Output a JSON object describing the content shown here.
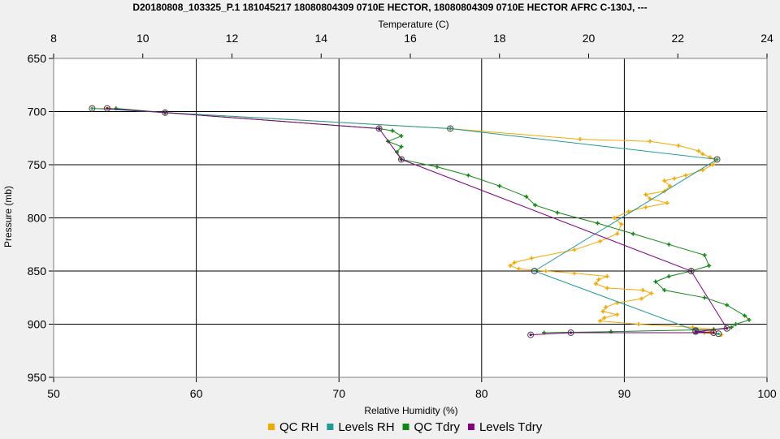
{
  "chart_data": {
    "type": "line",
    "title": "D20180808_103325_P.1 181045217 18080804309 0710E HECTOR, 18080804309 0710E HECTOR AFRC C-130J, ---",
    "x_top_label": "Temperature (C)",
    "x_bottom_label": "Relative Humidity (%)",
    "ylabel": "Pressure (mb)",
    "x_top_range": [
      8,
      24
    ],
    "x_top_ticks": [
      "8",
      "10",
      "12",
      "14",
      "16",
      "18",
      "20",
      "22",
      "24"
    ],
    "x_bottom_range": [
      50,
      100
    ],
    "x_bottom_ticks": [
      "50",
      "60",
      "70",
      "80",
      "90",
      "100"
    ],
    "y_range": [
      650,
      950
    ],
    "y_inverted": true,
    "y_ticks": [
      "650",
      "700",
      "750",
      "800",
      "850",
      "900",
      "950"
    ],
    "grid": true,
    "legend_position": "bottom",
    "series": [
      {
        "name": "QC RH",
        "axis": "bottom",
        "color": "#f5a800",
        "marker": "plus",
        "points": [
          [
            52.7,
            697
          ],
          [
            53.9,
            697
          ],
          [
            57.8,
            701
          ],
          [
            77.8,
            716
          ],
          [
            86.9,
            726
          ],
          [
            91.8,
            728
          ],
          [
            93.8,
            732
          ],
          [
            95.2,
            737
          ],
          [
            95.5,
            740
          ],
          [
            96.0,
            743
          ],
          [
            96.5,
            745
          ],
          [
            96.2,
            750
          ],
          [
            95.5,
            755
          ],
          [
            94.3,
            760
          ],
          [
            93.5,
            763
          ],
          [
            92.8,
            765
          ],
          [
            93.2,
            770
          ],
          [
            92.8,
            775
          ],
          [
            91.5,
            778
          ],
          [
            91.8,
            782
          ],
          [
            93.0,
            786
          ],
          [
            91.5,
            790
          ],
          [
            90.3,
            794
          ],
          [
            89.3,
            800
          ],
          [
            89.8,
            806
          ],
          [
            89.5,
            815
          ],
          [
            88.3,
            822
          ],
          [
            86.5,
            830
          ],
          [
            83.5,
            838
          ],
          [
            82.3,
            842
          ],
          [
            82.0,
            845
          ],
          [
            82.6,
            848
          ],
          [
            84.5,
            850
          ],
          [
            86.5,
            852
          ],
          [
            88.8,
            855
          ],
          [
            88.2,
            858
          ],
          [
            88.0,
            862
          ],
          [
            88.8,
            866
          ],
          [
            91.3,
            868
          ],
          [
            91.9,
            871
          ],
          [
            91.2,
            876
          ],
          [
            89.5,
            880
          ],
          [
            88.7,
            884
          ],
          [
            88.5,
            888
          ],
          [
            89.5,
            891
          ],
          [
            88.6,
            894
          ],
          [
            88.3,
            897
          ],
          [
            91.0,
            900
          ],
          [
            94.8,
            903
          ],
          [
            96.3,
            905
          ],
          [
            96.0,
            907
          ],
          [
            95.6,
            908
          ],
          [
            96.8,
            910
          ]
        ]
      },
      {
        "name": "Levels RH",
        "axis": "bottom",
        "color": "#1e9a9a",
        "marker": "circle",
        "points": [
          [
            52.7,
            697
          ],
          [
            77.8,
            716
          ],
          [
            96.5,
            745
          ],
          [
            83.7,
            850
          ],
          [
            95.0,
            906
          ],
          [
            96.6,
            909
          ]
        ]
      },
      {
        "name": "QC Tdry",
        "axis": "top",
        "color": "#118811",
        "marker": "plus",
        "points": [
          [
            9.4,
            697
          ],
          [
            10.5,
            701
          ],
          [
            15.3,
            716
          ],
          [
            15.6,
            718
          ],
          [
            15.8,
            723
          ],
          [
            15.5,
            728
          ],
          [
            15.8,
            733
          ],
          [
            15.7,
            738
          ],
          [
            15.8,
            745
          ],
          [
            16.6,
            752
          ],
          [
            17.3,
            760
          ],
          [
            18.0,
            770
          ],
          [
            18.6,
            780
          ],
          [
            18.8,
            788
          ],
          [
            19.3,
            795
          ],
          [
            20.2,
            805
          ],
          [
            21.0,
            815
          ],
          [
            21.8,
            825
          ],
          [
            22.6,
            835
          ],
          [
            22.7,
            845
          ],
          [
            22.3,
            850
          ],
          [
            21.8,
            855
          ],
          [
            21.5,
            860
          ],
          [
            21.7,
            868
          ],
          [
            22.6,
            875
          ],
          [
            23.1,
            882
          ],
          [
            23.5,
            892
          ],
          [
            23.6,
            896
          ],
          [
            23.3,
            900
          ],
          [
            23.2,
            903
          ],
          [
            22.8,
            905
          ],
          [
            20.5,
            907
          ],
          [
            19.0,
            908
          ]
        ]
      },
      {
        "name": "Levels Tdry",
        "axis": "top",
        "color": "#800080",
        "marker": "circle",
        "points": [
          [
            9.2,
            697
          ],
          [
            10.5,
            701
          ],
          [
            15.3,
            716
          ],
          [
            15.8,
            745
          ],
          [
            22.3,
            850
          ],
          [
            23.1,
            904
          ],
          [
            22.4,
            907
          ],
          [
            22.8,
            908
          ],
          [
            19.6,
            908
          ],
          [
            18.7,
            910
          ]
        ]
      }
    ]
  }
}
